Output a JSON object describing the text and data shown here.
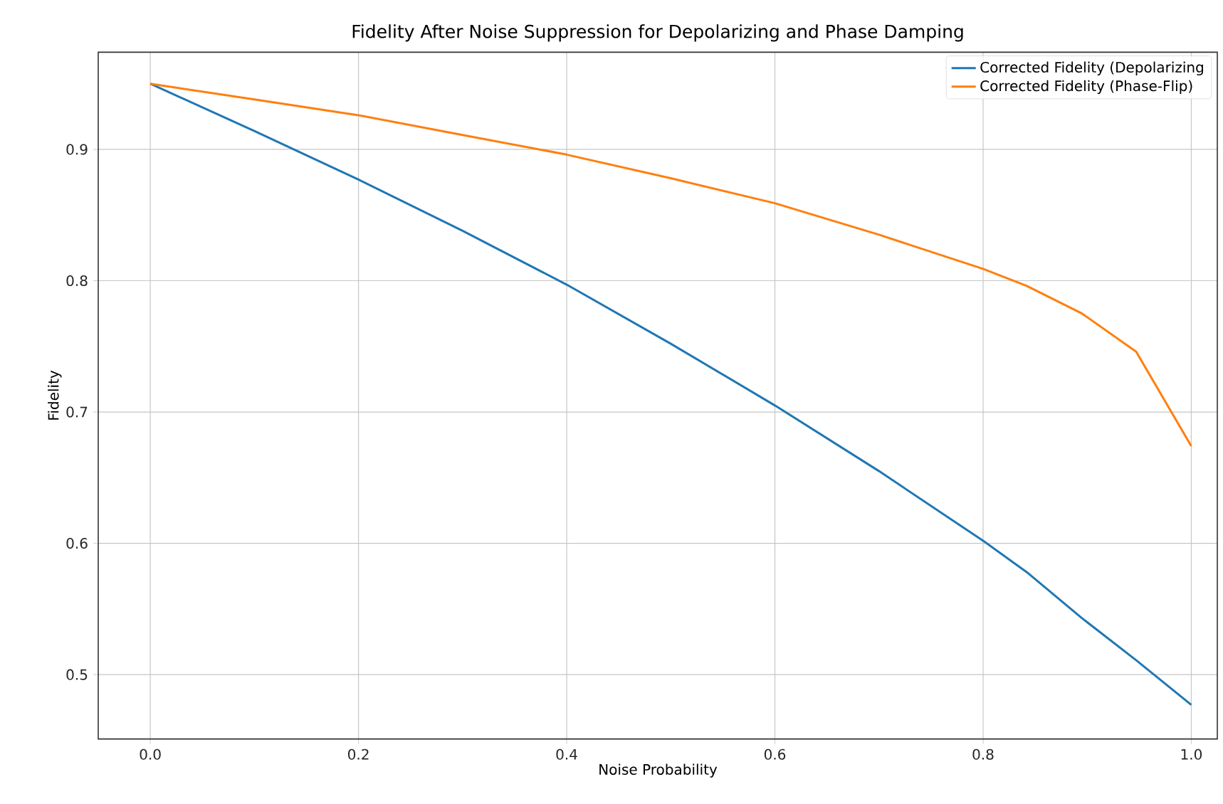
{
  "chart_data": {
    "type": "line",
    "title": "Fidelity After Noise Suppression for Depolarizing and Phase Damping",
    "xlabel": "Noise Probability",
    "ylabel": "Fidelity",
    "x": [
      0,
      0.1,
      0.2,
      0.3,
      0.4,
      0.5,
      0.6,
      0.7,
      0.8,
      0.842,
      0.895,
      0.947,
      1.0
    ],
    "series": [
      {
        "name": "Corrected Fidelity (Depolarizing",
        "color": "#1f77b4",
        "values": [
          0.95,
          0.914,
          0.877,
          0.838,
          0.797,
          0.752,
          0.705,
          0.655,
          0.602,
          0.578,
          0.543,
          0.511,
          0.477
        ]
      },
      {
        "name": "Corrected Fidelity (Phase-Flip)",
        "color": "#ff7f0e",
        "values": [
          0.95,
          0.938,
          0.926,
          0.911,
          0.896,
          0.878,
          0.859,
          0.835,
          0.809,
          0.796,
          0.775,
          0.746,
          0.674
        ]
      }
    ],
    "xlim": [
      -0.05,
      1.025
    ],
    "ylim": [
      0.451,
      0.974
    ],
    "xticks": [
      {
        "value": 0,
        "label": "0.0"
      },
      0.2,
      0.4,
      0.6,
      0.8,
      {
        "value": 1.0,
        "label": "1.0"
      }
    ],
    "yticks": [
      0.5,
      0.6,
      0.7,
      0.8,
      0.9
    ],
    "grid": true,
    "legend": "top right"
  }
}
